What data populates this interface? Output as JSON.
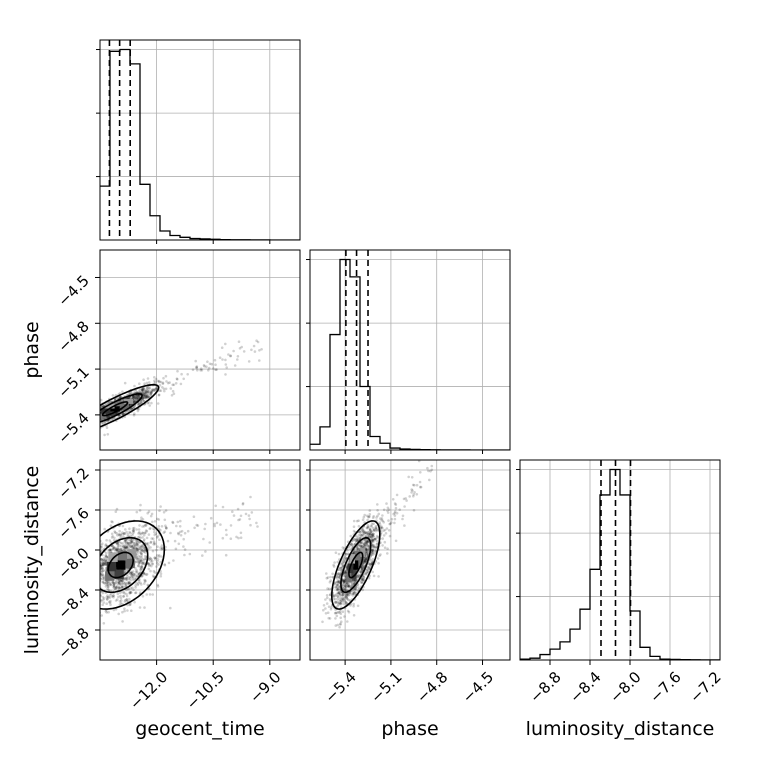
{
  "chart_data": {
    "type": "corner",
    "parameters": [
      "geocent_time",
      "phase",
      "luminosity_distance"
    ],
    "axes": {
      "geocent_time": {
        "range": [
          -13.5,
          -8.2
        ],
        "ticks": [
          -12.0,
          -10.5,
          -9.0
        ],
        "tick_labels": [
          "−12.0",
          "−10.5",
          "−9.0"
        ]
      },
      "phase": {
        "range": [
          -5.63,
          -4.32
        ],
        "ticks": [
          -5.4,
          -5.1,
          -4.8,
          -4.5
        ],
        "tick_labels": [
          "−5.4",
          "−5.1",
          "−4.8",
          "−4.5"
        ]
      },
      "luminosity_distance": {
        "range": [
          -9.1,
          -7.1
        ],
        "ticks": [
          -8.8,
          -8.4,
          -8.0,
          -7.6,
          -7.2
        ],
        "tick_labels": [
          "−8.8",
          "−8.4",
          "−8.0",
          "−7.6",
          "−7.2"
        ]
      }
    },
    "grid": true,
    "marginals": [
      {
        "parameter": "geocent_time",
        "bin_edges": [
          -13.5,
          -13.235,
          -12.97,
          -12.705,
          -12.44,
          -12.175,
          -11.91,
          -11.645,
          -11.38,
          -11.115,
          -10.85,
          -10.585,
          -10.32,
          -10.055,
          -9.79,
          -9.525,
          -9.26,
          -8.995,
          -8.73,
          -8.465,
          -8.2
        ],
        "counts": [
          0.3,
          1.05,
          1.06,
          0.98,
          0.31,
          0.135,
          0.05,
          0.025,
          0.015,
          0.008,
          0.006,
          0.004,
          0.002,
          0.001,
          0.001,
          0.0005,
          0.0003,
          0.0002,
          0.0001,
          0.0001
        ],
        "quantiles": [
          -13.25,
          -12.98,
          -12.7
        ]
      },
      {
        "parameter": "phase",
        "bin_edges": [
          -5.63,
          -5.5645,
          -5.499,
          -5.4335,
          -5.368,
          -5.3025,
          -5.237,
          -5.1715,
          -5.106,
          -5.0405,
          -4.975,
          -4.9095,
          -4.844,
          -4.7785,
          -4.713,
          -4.6475,
          -4.582,
          -4.5165,
          -4.451,
          -4.3855,
          -4.32
        ],
        "counts": [
          0.03,
          0.12,
          0.6,
          0.99,
          0.9,
          0.33,
          0.07,
          0.035,
          0.01,
          0.005,
          0.003,
          0.002,
          0.001,
          0.0005,
          0.0003,
          0.0002,
          0.0001,
          0.0001,
          0.0001,
          0.0001
        ],
        "quantiles": [
          -5.395,
          -5.325,
          -5.25
        ]
      },
      {
        "parameter": "luminosity_distance",
        "bin_edges": [
          -9.1,
          -9.0,
          -8.9,
          -8.8,
          -8.7,
          -8.6,
          -8.5,
          -8.4,
          -8.3,
          -8.2,
          -8.1,
          -8.0,
          -7.9,
          -7.8,
          -7.7,
          -7.6,
          -7.5,
          -7.4,
          -7.3,
          -7.2,
          -7.1
        ],
        "counts": [
          0.005,
          0.01,
          0.03,
          0.06,
          0.1,
          0.17,
          0.28,
          0.5,
          0.91,
          1.05,
          0.91,
          0.27,
          0.07,
          0.02,
          0.005,
          0.003,
          0.002,
          0.001,
          0.0005,
          0.0003
        ],
        "quantiles": [
          -8.29,
          -8.145,
          -7.995
        ]
      }
    ],
    "pairs": [
      {
        "x": "geocent_time",
        "y": "phase",
        "center": [
          -13.1,
          -5.36
        ],
        "spread": [
          0.55,
          0.075
        ],
        "rho": 0.88
      },
      {
        "x": "geocent_time",
        "y": "luminosity_distance",
        "center": [
          -12.95,
          -8.15
        ],
        "spread": [
          0.55,
          0.21
        ],
        "rho": 0.35
      },
      {
        "x": "phase",
        "y": "luminosity_distance",
        "center": [
          -5.33,
          -8.15
        ],
        "spread": [
          0.075,
          0.21
        ],
        "rho": 0.7
      }
    ]
  }
}
